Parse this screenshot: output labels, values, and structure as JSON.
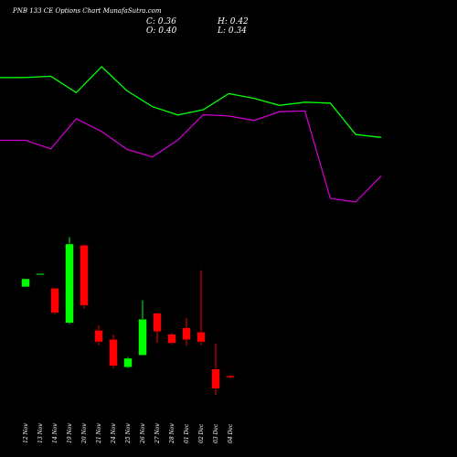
{
  "header": {
    "title": "PNB 133 CE Options  Chart MunafaSutra.com",
    "close_label": "C: 0.36",
    "high_label": "H: 0.42",
    "open_label": "O: 0.40",
    "low_label": "L: 0.34"
  },
  "colors": {
    "background": "#000000",
    "up": "#00ff00",
    "down": "#ff0000",
    "line_green": "#00ff00",
    "line_magenta": "#cc00cc",
    "text": "#ffffff"
  },
  "chart_data": {
    "type": "candlestick",
    "categories": [
      "12 Nov",
      "13 Nov",
      "14 Nov",
      "19 Nov",
      "20 Nov",
      "21 Nov",
      "24 Nov",
      "25 Nov",
      "26 Nov",
      "27 Nov",
      "28 Nov",
      "01 Dec",
      "02 Dec",
      "03 Dec",
      "04 Dec"
    ],
    "candles": [
      {
        "open": 2.47,
        "high": 2.66,
        "low": 2.47,
        "close": 2.66,
        "color": "up"
      },
      {
        "open": 2.77,
        "high": 2.78,
        "low": 2.76,
        "close": 2.78,
        "color": "up"
      },
      {
        "open": 2.44,
        "high": 2.45,
        "low": 1.83,
        "close": 1.87,
        "color": "down"
      },
      {
        "open": 1.63,
        "high": 3.63,
        "low": 1.6,
        "close": 3.47,
        "color": "up"
      },
      {
        "open": 3.44,
        "high": 3.46,
        "low": 1.97,
        "close": 2.04,
        "color": "down"
      },
      {
        "open": 1.46,
        "high": 1.57,
        "low": 1.12,
        "close": 1.19,
        "color": "down"
      },
      {
        "open": 1.25,
        "high": 1.36,
        "low": 0.58,
        "close": 0.63,
        "color": "down"
      },
      {
        "open": 0.6,
        "high": 0.84,
        "low": 0.58,
        "close": 0.81,
        "color": "up"
      },
      {
        "open": 0.88,
        "high": 2.16,
        "low": 0.87,
        "close": 1.72,
        "color": "up"
      },
      {
        "open": 1.86,
        "high": 1.87,
        "low": 1.17,
        "close": 1.43,
        "color": "down"
      },
      {
        "open": 1.37,
        "high": 1.4,
        "low": 1.13,
        "close": 1.16,
        "color": "down"
      },
      {
        "open": 1.52,
        "high": 1.75,
        "low": 1.1,
        "close": 1.24,
        "color": "down"
      },
      {
        "open": 1.42,
        "high": 2.86,
        "low": 1.12,
        "close": 1.19,
        "color": "down"
      },
      {
        "open": 0.56,
        "high": 1.14,
        "low": -0.04,
        "close": 0.1,
        "color": "down"
      },
      {
        "open": 0.4,
        "high": 0.42,
        "low": 0.34,
        "close": 0.36,
        "color": "down"
      }
    ],
    "green_line": [
      8.48,
      8.48,
      8.53,
      7.88,
      8.91,
      7.95,
      7.32,
      6.99,
      7.2,
      7.84,
      7.65,
      7.37,
      7.5,
      7.46,
      6.21,
      6.1
    ],
    "magenta_line": [
      5.98,
      5.98,
      5.64,
      6.84,
      6.33,
      5.62,
      5.32,
      5.99,
      7.0,
      6.95,
      6.77,
      7.12,
      7.15,
      3.67,
      3.53,
      4.56
    ]
  }
}
